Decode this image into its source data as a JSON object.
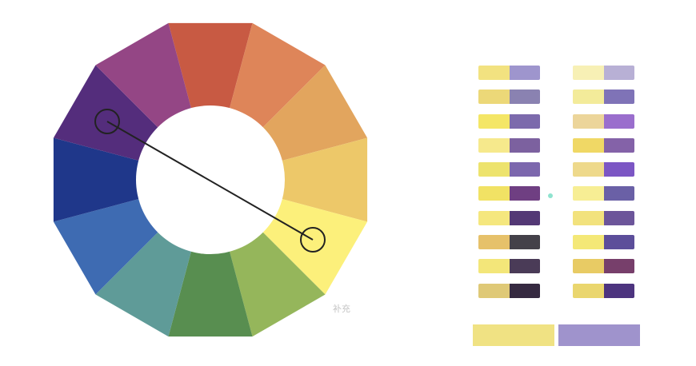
{
  "wheel": {
    "label": "补充",
    "segments": [
      "#c85a43",
      "#de8559",
      "#e2a55e",
      "#edc869",
      "#fcf07b",
      "#95b65b",
      "#588e50",
      "#5f9b98",
      "#3e6bb2",
      "#1f378a",
      "#542d7c",
      "#944685"
    ],
    "hole_color": "#ffffff",
    "marker_color": "#222222"
  },
  "center_dot_color": "#8fe3cf",
  "palette_left": [
    [
      "#f2e280",
      "#9e95cd"
    ],
    [
      "#ecd878",
      "#8a82b1"
    ],
    [
      "#f4e666",
      "#7c6aac"
    ],
    [
      "#f6e98c",
      "#7c619f"
    ],
    [
      "#ede36d",
      "#7c67ad"
    ],
    [
      "#f1e264",
      "#6f3f82"
    ],
    [
      "#f5e77e",
      "#533875"
    ],
    [
      "#e6c16a",
      "#444149"
    ],
    [
      "#f3e679",
      "#4a3b57"
    ],
    [
      "#dfc977",
      "#362a41"
    ]
  ],
  "palette_right": [
    [
      "#f7f0b5",
      "#b8b0d5"
    ],
    [
      "#f3eb9a",
      "#7f73b7"
    ],
    [
      "#ecd59a",
      "#9a6ecd"
    ],
    [
      "#f0d865",
      "#8462a8"
    ],
    [
      "#eed98b",
      "#7c56c4"
    ],
    [
      "#f7ee94",
      "#6a60a6"
    ],
    [
      "#f2e27d",
      "#6c559a"
    ],
    [
      "#f4e877",
      "#5c4e9a"
    ],
    [
      "#e8cb64",
      "#773f6b"
    ],
    [
      "#ead66e",
      "#4d347f"
    ]
  ],
  "result_colors": [
    "#f0e283",
    "#9f93cc"
  ]
}
